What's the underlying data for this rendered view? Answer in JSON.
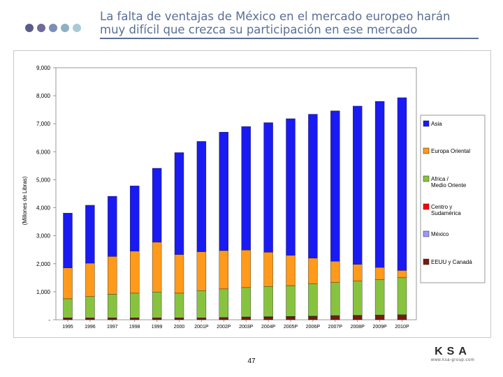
{
  "header": {
    "title_line1": "La falta de ventajas de México en el mercado europeo harán",
    "title_line2": "muy difícil que crezca su participación en ese mercado",
    "title_color": "#5a6f95",
    "dot_colors": [
      "#5a5d8c",
      "#6f6a9e",
      "#7a8fb5",
      "#8fb0c4",
      "#a8cad6"
    ]
  },
  "footer": {
    "page_number": "47",
    "logo_text": "KSA",
    "logo_subtext": "www.ksa-group.com"
  },
  "chart_data": {
    "type": "bar",
    "stacked": true,
    "ylabel": "(Millones de Libras)",
    "xlabel": "",
    "ylim": [
      0,
      9000
    ],
    "yticks": [
      0,
      1000,
      2000,
      3000,
      4000,
      5000,
      6000,
      7000,
      8000,
      9000
    ],
    "ytick_labels": [
      "-",
      "1,000",
      "2,000",
      "3,000",
      "4,000",
      "5,000",
      "6,000",
      "7,000",
      "8,000",
      "9,000"
    ],
    "grid": false,
    "legend_position": "right",
    "categories": [
      "1995",
      "1996",
      "1997",
      "1998",
      "1999",
      "2000",
      "2001P",
      "2002P",
      "2003P",
      "2004P",
      "2005P",
      "2006P",
      "2007P",
      "2008P",
      "2009P",
      "2010P"
    ],
    "series": [
      {
        "name": "EEUU y Canadá",
        "color": "#7a1a0c",
        "values": [
          60,
          60,
          60,
          60,
          60,
          60,
          60,
          70,
          80,
          90,
          100,
          110,
          120,
          130,
          140,
          150
        ]
      },
      {
        "name": "México",
        "color": "#9999ff",
        "values": [
          5,
          5,
          5,
          5,
          5,
          5,
          5,
          5,
          10,
          10,
          10,
          10,
          15,
          15,
          15,
          15
        ]
      },
      {
        "name": "Centro y Sudamérica",
        "color": "#ff0000",
        "values": [
          5,
          5,
          5,
          5,
          5,
          5,
          5,
          5,
          10,
          10,
          10,
          10,
          15,
          15,
          15,
          15
        ]
      },
      {
        "name": "Africa / Medio Oriente",
        "color": "#88c340",
        "values": [
          680,
          760,
          840,
          880,
          920,
          880,
          970,
          1020,
          1050,
          1080,
          1100,
          1150,
          1180,
          1220,
          1260,
          1320
        ]
      },
      {
        "name": "Europa Oriental",
        "color": "#ff9a1a",
        "values": [
          1100,
          1190,
          1350,
          1500,
          1780,
          1380,
          1390,
          1370,
          1340,
          1220,
          1080,
          920,
          760,
          600,
          440,
          260
        ]
      },
      {
        "name": "Asia",
        "color": "#1a1af2",
        "values": [
          1960,
          2070,
          2150,
          2330,
          2640,
          3640,
          3940,
          4230,
          4410,
          4630,
          4880,
          5140,
          5370,
          5650,
          5930,
          6170
        ]
      }
    ],
    "legend_order": [
      "Asia",
      "Europa Oriental",
      "Africa / Medio Oriente",
      "Centro y Sudamérica",
      "México",
      "EEUU y Canadá"
    ]
  }
}
